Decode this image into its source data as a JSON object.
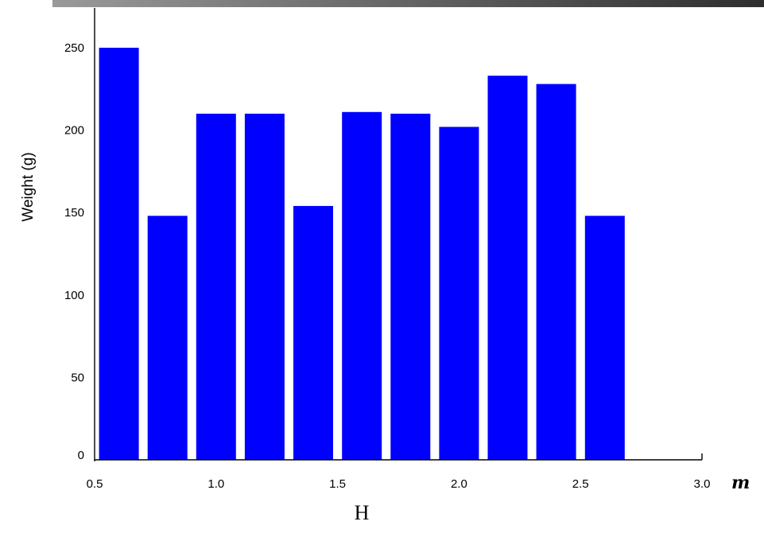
{
  "chart_data": {
    "type": "bar",
    "x": [
      0.6,
      0.8,
      1.0,
      1.2,
      1.4,
      1.6,
      1.8,
      2.0,
      2.2,
      2.4,
      2.6
    ],
    "values": [
      250,
      148,
      210,
      210,
      154,
      211,
      210,
      202,
      233,
      228,
      148
    ],
    "xlabel": "H",
    "xunit": "m",
    "ylabel": "Weight (g)",
    "title": "",
    "xlim": [
      0.5,
      3.0
    ],
    "ylim": [
      0,
      260
    ],
    "xticks": [
      0.5,
      1.0,
      1.5,
      2.0,
      2.5,
      3.0
    ],
    "xtick_labels": [
      "0.5",
      "1.0",
      "1.5",
      "2.0",
      "2.5",
      "3.0"
    ],
    "yticks": [
      0,
      50,
      100,
      150,
      200,
      250
    ],
    "ytick_labels": [
      "0",
      "50",
      "100",
      "150",
      "200",
      "250"
    ],
    "bar_color": "#0000ff",
    "grid": false,
    "legend": "none"
  },
  "colors": {
    "header_band_gradient_start": "#9a9a9a",
    "header_band_gradient_end": "#2e2e2e"
  }
}
